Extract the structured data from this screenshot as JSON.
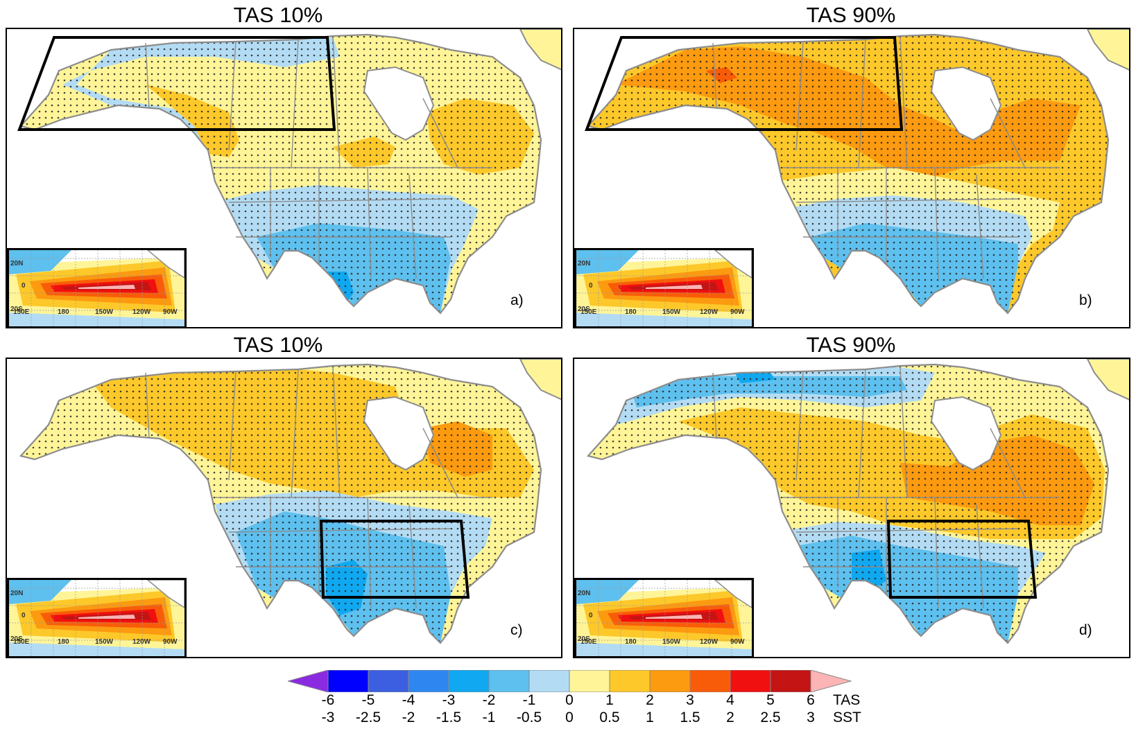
{
  "panels": [
    {
      "id": "a",
      "title": "TAS 10%",
      "letter": "a)",
      "box": "north"
    },
    {
      "id": "b",
      "title": "TAS 90%",
      "letter": "b)",
      "box": "north"
    },
    {
      "id": "c",
      "title": "TAS 10%",
      "letter": "c)",
      "box": "south"
    },
    {
      "id": "d",
      "title": "TAS 90%",
      "letter": "d)",
      "box": "south"
    }
  ],
  "inset_labels": {
    "lat_north": "20N",
    "lat_zero": "0",
    "lat_south": "20S",
    "lon1": "150E",
    "lon2": "180",
    "lon3": "150W",
    "lon4": "120W",
    "lon5": "90W"
  },
  "colorbar": {
    "tas_levels": [
      "-6",
      "-5",
      "-4",
      "-3",
      "-2",
      "-1",
      "0",
      "1",
      "2",
      "3",
      "4",
      "5",
      "6"
    ],
    "sst_levels": [
      "-3",
      "-2.5",
      "-2",
      "-1.5",
      "-1",
      "-0.5",
      "0",
      "0.5",
      "1",
      "1.5",
      "2",
      "2.5",
      "3"
    ],
    "tas_name": "TAS",
    "sst_name": "SST",
    "colors": [
      "#8a2be2",
      "#0000ff",
      "#3b5fe0",
      "#2e86f0",
      "#10a8f0",
      "#5ec0ee",
      "#b3dcf4",
      "#fff598",
      "#fdc82a",
      "#fc9a10",
      "#f95c08",
      "#f01010",
      "#c41414",
      "#fcb4b4"
    ]
  }
}
